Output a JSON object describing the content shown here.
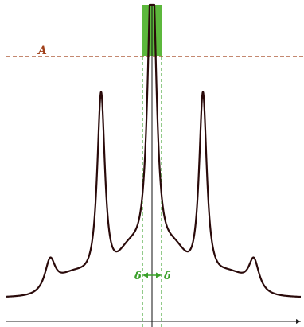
{
  "diagram": {
    "threshold_label": "A",
    "delta_left_label": "δ",
    "delta_right_label": "δ",
    "colors": {
      "curve": "#2a0a0a",
      "threshold": "#a0401a",
      "band_line": "#3aa02a",
      "band_fill": "#5cb83c",
      "axis": "#222222"
    }
  }
}
